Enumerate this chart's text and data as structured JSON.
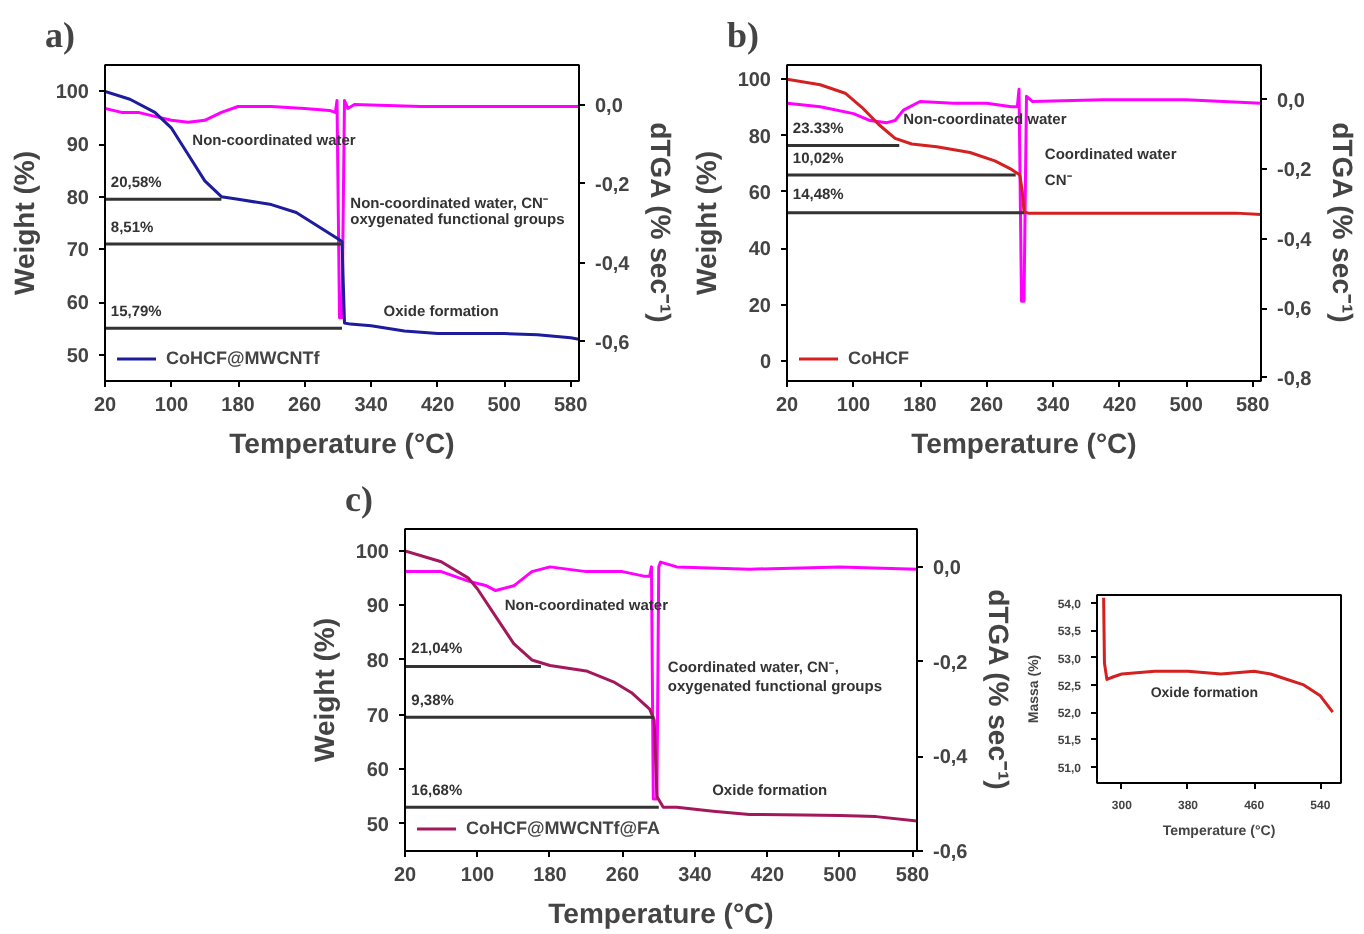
{
  "chart_data": [
    {
      "type": "line",
      "title": "a)",
      "xlabel": "Temperature (°C)",
      "ylabel": "Weight (%)",
      "y2label": "dTGA (% sec⁻¹)",
      "xlim": [
        20,
        590
      ],
      "ylim": [
        45,
        105
      ],
      "y2lim": [
        -0.7,
        0.1
      ],
      "xticks": [
        20,
        100,
        180,
        260,
        340,
        420,
        500,
        580
      ],
      "yticks": [
        50,
        60,
        70,
        80,
        90,
        100
      ],
      "y2ticks": [
        {
          "value": 0,
          "label": "0,0"
        },
        {
          "value": -0.2,
          "label": "-0,2"
        },
        {
          "value": -0.4,
          "label": "-0,4"
        },
        {
          "value": -0.6,
          "label": "-0,6"
        }
      ],
      "legend": "bottom left",
      "series": [
        {
          "name": "CoHCF@MWCNTf",
          "color": "#1c1c9c",
          "x": [
            20,
            50,
            80,
            100,
            120,
            140,
            160,
            180,
            220,
            250,
            280,
            300,
            305,
            308,
            315,
            340,
            380,
            420,
            500,
            540,
            580,
            590
          ],
          "values": [
            100,
            98.5,
            96,
            93,
            88,
            83,
            80,
            79.5,
            78.5,
            77,
            74,
            72,
            71.5,
            56,
            55.8,
            55.5,
            54.5,
            54,
            54,
            53.8,
            53.2,
            52.9
          ]
        },
        {
          "color": "#ff00ff",
          "axis": "y2",
          "x": [
            20,
            40,
            60,
            80,
            100,
            120,
            140,
            160,
            180,
            220,
            260,
            290,
            297,
            299,
            302,
            305,
            308,
            312,
            320,
            400,
            500,
            590
          ],
          "values": [
            -0.01,
            -0.02,
            -0.02,
            -0.03,
            -0.04,
            -0.045,
            -0.04,
            -0.02,
            -0.005,
            -0.005,
            -0.01,
            -0.015,
            -0.02,
            0.01,
            -0.54,
            -0.54,
            0.01,
            -0.01,
            0.0,
            -0.005,
            -0.005,
            -0.005
          ]
        },
        {
          "color": "#333333",
          "x": [
            20,
            160
          ],
          "values": [
            79.5,
            79.5
          ]
        },
        {
          "color": "#333333",
          "x": [
            20,
            305
          ],
          "values": [
            71,
            71
          ]
        },
        {
          "color": "#333333",
          "x": [
            20,
            305
          ],
          "values": [
            55,
            55
          ]
        }
      ],
      "annotations": [
        {
          "text": "20,58%",
          "x": 27,
          "y": 81
        },
        {
          "text": "8,51%",
          "x": 27,
          "y": 72.5
        },
        {
          "text": "15,79%",
          "x": 27,
          "y": 56.5
        },
        {
          "text": "Non-coordinated water",
          "x": 125,
          "y": 89
        },
        {
          "text": "Non-coordinated water, CN⁻",
          "x": 315,
          "y": 77
        },
        {
          "text": "oxygenated functional groups",
          "x": 315,
          "y": 74
        },
        {
          "text": "Oxide formation",
          "x": 355,
          "y": 56.5
        }
      ]
    },
    {
      "type": "line",
      "title": "b)",
      "xlabel": "Temperature (°C)",
      "ylabel": "Weight (%)",
      "y2label": "dTGA (% sec⁻¹)",
      "xlim": [
        20,
        590
      ],
      "ylim": [
        -7,
        105
      ],
      "y2lim": [
        -0.81,
        0.1
      ],
      "xticks": [
        20,
        100,
        180,
        260,
        340,
        420,
        500,
        580
      ],
      "yticks": [
        0,
        20,
        40,
        60,
        80,
        100
      ],
      "y2ticks": [
        {
          "value": 0,
          "label": "0,0"
        },
        {
          "value": -0.2,
          "label": "-0,2"
        },
        {
          "value": -0.4,
          "label": "-0,4"
        },
        {
          "value": -0.6,
          "label": "-0,6"
        },
        {
          "value": -0.8,
          "label": "-0,8"
        }
      ],
      "legend": "bottom left",
      "series": [
        {
          "name": "CoHCF",
          "color": "#d42020",
          "x": [
            20,
            60,
            90,
            110,
            130,
            150,
            170,
            200,
            240,
            270,
            290,
            300,
            303,
            305,
            310,
            400,
            500,
            560,
            590
          ],
          "values": [
            100,
            98,
            95,
            90,
            84,
            79,
            77,
            76,
            74,
            71,
            68,
            66,
            60,
            53,
            52.5,
            52.5,
            52.5,
            52.5,
            52
          ]
        },
        {
          "color": "#ff00ff",
          "axis": "y2",
          "x": [
            20,
            60,
            100,
            120,
            140,
            150,
            160,
            180,
            220,
            260,
            290,
            297,
            299,
            302,
            305,
            308,
            315,
            400,
            500,
            590
          ],
          "values": [
            -0.01,
            -0.02,
            -0.04,
            -0.06,
            -0.066,
            -0.06,
            -0.03,
            -0.005,
            -0.01,
            -0.01,
            -0.02,
            -0.02,
            0.03,
            -0.58,
            -0.58,
            0.01,
            -0.005,
            0.0,
            0.0,
            -0.01
          ]
        },
        {
          "color": "#333333",
          "x": [
            20,
            155
          ],
          "values": [
            76.5,
            76.5
          ]
        },
        {
          "color": "#333333",
          "x": [
            20,
            295
          ],
          "values": [
            66,
            66
          ]
        },
        {
          "color": "#333333",
          "x": [
            20,
            305
          ],
          "values": [
            52.6,
            52.6
          ]
        }
      ],
      "annotations": [
        {
          "text": "23.33%",
          "x": 27,
          "y": 79.5
        },
        {
          "text": "10,02%",
          "x": 27,
          "y": 69
        },
        {
          "text": "14,48%",
          "x": 27,
          "y": 56
        },
        "Non-coordinated water",
        "Coordinated water",
        "CN⁻"
      ]
    },
    {
      "type": "line",
      "xlabel": "Temperature (°C)",
      "ylabel": "Massa (%)",
      "xlim": [
        270,
        565
      ],
      "ylim": [
        50.7,
        54.15
      ],
      "xticks": [
        300,
        380,
        460,
        540
      ],
      "yticks": [
        {
          "value": 51,
          "label": "51,0"
        },
        {
          "value": 51.5,
          "label": "51,5"
        },
        {
          "value": 52,
          "label": "52,0"
        },
        {
          "value": 52.5,
          "label": "52,5"
        },
        {
          "value": 53,
          "label": "53,0"
        },
        {
          "value": 53.5,
          "label": "53,5"
        },
        {
          "value": 54,
          "label": "54,0"
        }
      ],
      "series": [
        {
          "color": "#d42020",
          "x": [
            278,
            279,
            282,
            290,
            300,
            340,
            380,
            420,
            460,
            480,
            500,
            520,
            540,
            555
          ],
          "values": [
            54.1,
            52.9,
            52.6,
            52.65,
            52.7,
            52.75,
            52.75,
            52.7,
            52.75,
            52.7,
            52.6,
            52.5,
            52.3,
            52.0
          ]
        }
      ],
      "annotations": [
        "Oxide formation"
      ]
    },
    {
      "type": "line",
      "title": "c)",
      "xlabel": "Temperature (°C)",
      "ylabel": "Weight (%)",
      "y2label": "dTGA (% sec⁻¹)",
      "xlim": [
        20,
        585
      ],
      "ylim": [
        45,
        104
      ],
      "y2lim": [
        -0.6,
        0.08
      ],
      "xticks": [
        20,
        100,
        180,
        260,
        340,
        420,
        500,
        580
      ],
      "yticks": [
        50,
        60,
        70,
        80,
        90,
        100
      ],
      "y2ticks": [
        {
          "value": 0,
          "label": "0,0"
        },
        {
          "value": -0.2,
          "label": "-0,2"
        },
        {
          "value": -0.4,
          "label": "-0,4"
        },
        {
          "value": -0.6,
          "label": "-0,6"
        }
      ],
      "legend": "bottom left",
      "series": [
        {
          "name": "CoHCF@MWCNTf@FA",
          "color": "#a3185c",
          "x": [
            20,
            60,
            90,
            100,
            120,
            140,
            160,
            180,
            220,
            250,
            270,
            290,
            295,
            298,
            305,
            320,
            360,
            400,
            460,
            500,
            540,
            585
          ],
          "values": [
            100,
            98,
            95,
            93,
            88,
            83,
            80,
            79,
            78,
            76,
            74,
            71,
            69,
            55,
            53,
            53,
            52.3,
            51.7,
            51.6,
            51.5,
            51.3,
            50.5
          ]
        },
        {
          "color": "#ff00ff",
          "axis": "y2",
          "x": [
            20,
            60,
            90,
            110,
            120,
            140,
            160,
            180,
            220,
            260,
            285,
            290,
            292,
            294,
            298,
            300,
            302,
            320,
            400,
            500,
            585
          ],
          "values": [
            -0.01,
            -0.01,
            -0.03,
            -0.04,
            -0.05,
            -0.04,
            -0.01,
            0.0,
            -0.01,
            -0.01,
            -0.02,
            -0.02,
            0.0,
            -0.49,
            -0.49,
            0.0,
            0.01,
            0.0,
            -0.005,
            0.0,
            -0.005
          ]
        },
        {
          "color": "#333333",
          "x": [
            20,
            170
          ],
          "values": [
            78.8,
            78.8
          ]
        },
        {
          "color": "#333333",
          "x": [
            20,
            295
          ],
          "values": [
            69.5,
            69.5
          ]
        },
        {
          "color": "#333333",
          "x": [
            20,
            300
          ],
          "values": [
            53,
            53
          ]
        }
      ],
      "annotations": [
        {
          "text": "21,04%",
          "x": 27,
          "y": 80.5
        },
        {
          "text": "9,38%",
          "x": 27,
          "y": 71
        },
        {
          "text": "16,68%",
          "x": 27,
          "y": 54.5
        },
        {
          "text": "Non-coordinated water",
          "x": 130,
          "y": 88.5
        },
        {
          "text": "Coordinated water, CN⁻,",
          "x": 310,
          "y": 77
        },
        {
          "text": "oxygenated functional groups",
          "x": 310,
          "y": 73.5
        },
        "Oxide formation"
      ]
    }
  ]
}
